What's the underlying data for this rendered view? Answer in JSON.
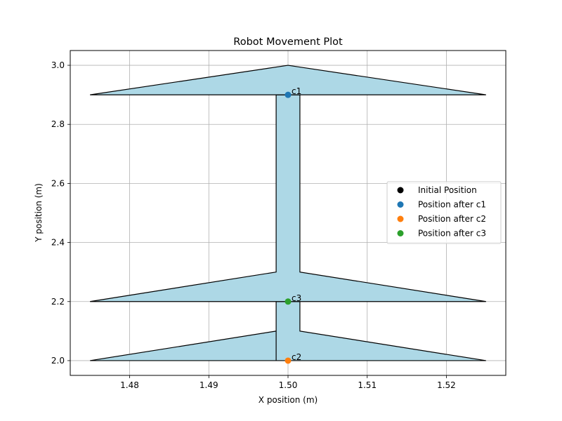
{
  "chart_data": {
    "type": "scatter",
    "title": "Robot Movement Plot",
    "xlabel": "X position (m)",
    "ylabel": "Y position (m)",
    "xlim": [
      1.4725,
      1.5275
    ],
    "ylim": [
      1.95,
      3.05
    ],
    "xticks": [
      1.48,
      1.49,
      1.5,
      1.51,
      1.52
    ],
    "xtick_labels": [
      "1.48",
      "1.49",
      "1.50",
      "1.51",
      "1.52"
    ],
    "yticks": [
      2.0,
      2.2,
      2.4,
      2.6,
      2.8,
      3.0
    ],
    "ytick_labels": [
      "2.0",
      "2.2",
      "2.4",
      "2.6",
      "2.8",
      "3.0"
    ],
    "grid": true,
    "legend_position": "center-right",
    "arrow_fill_color": "#add8e6",
    "arrow_edge_color": "#000000",
    "arrows": [
      {
        "from": [
          1.5,
          2.0
        ],
        "to": [
          1.5,
          2.2
        ],
        "polygon": [
          [
            1.4985,
            2.0
          ],
          [
            1.4985,
            2.1
          ],
          [
            1.475,
            2.0
          ],
          [
            1.525,
            2.0
          ],
          [
            1.5015,
            2.1
          ],
          [
            1.5015,
            2.2
          ],
          [
            1.4985,
            2.2
          ]
        ]
      },
      {
        "from": [
          1.5,
          2.2
        ],
        "to": [
          1.5,
          2.9
        ],
        "polygon": [
          [
            1.4985,
            2.3
          ],
          [
            1.475,
            2.2
          ],
          [
            1.525,
            2.2
          ],
          [
            1.5015,
            2.3
          ],
          [
            1.5015,
            2.9
          ],
          [
            1.4985,
            2.9
          ]
        ]
      },
      {
        "from": [
          1.5,
          2.9
        ],
        "to": [
          1.5,
          3.0
        ],
        "polygon": [
          [
            1.475,
            2.9
          ],
          [
            1.5,
            3.0
          ],
          [
            1.525,
            2.9
          ]
        ]
      }
    ],
    "series": [
      {
        "name": "Initial Position",
        "color": "#000000",
        "x": [],
        "y": []
      },
      {
        "name": "Position after c1",
        "color": "#1f77b4",
        "x": [
          1.5
        ],
        "y": [
          2.9
        ]
      },
      {
        "name": "Position after c2",
        "color": "#ff7f0e",
        "x": [
          1.5
        ],
        "y": [
          2.0
        ]
      },
      {
        "name": "Position after c3",
        "color": "#2ca02c",
        "x": [
          1.5
        ],
        "y": [
          2.2
        ]
      }
    ],
    "annotations": [
      {
        "text": "c1",
        "x": 1.5,
        "y": 2.9
      },
      {
        "text": "c2",
        "x": 1.5,
        "y": 2.0
      },
      {
        "text": "c3",
        "x": 1.5,
        "y": 2.2
      }
    ]
  }
}
